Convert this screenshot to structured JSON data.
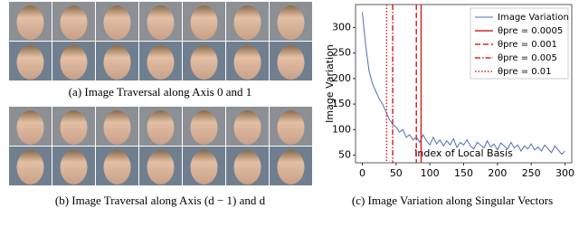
{
  "captions": {
    "a": "(a) Image Traversal along Axis 0 and 1",
    "b": "(b) Image Traversal along Axis (d − 1) and d",
    "c": "(c) Image Variation along Singular Vectors"
  },
  "chart_data": {
    "type": "line",
    "xlabel": "Index of Local Basis",
    "ylabel": "Image Variation",
    "xlim": [
      -10,
      310
    ],
    "ylim": [
      35,
      345
    ],
    "xticks": [
      0,
      50,
      100,
      150,
      200,
      250,
      300
    ],
    "yticks": [
      50,
      100,
      150,
      200,
      250,
      300
    ],
    "legend": "upper right",
    "x": [
      0,
      5,
      10,
      15,
      20,
      25,
      30,
      35,
      40,
      45,
      50,
      55,
      60,
      65,
      70,
      75,
      80,
      85,
      90,
      95,
      100,
      105,
      110,
      115,
      120,
      125,
      130,
      135,
      140,
      145,
      150,
      155,
      160,
      165,
      170,
      175,
      180,
      185,
      190,
      195,
      200,
      205,
      210,
      215,
      220,
      225,
      230,
      235,
      240,
      245,
      250,
      255,
      260,
      265,
      270,
      275,
      280,
      285,
      290,
      295,
      300
    ],
    "series": [
      {
        "name": "Image Variation",
        "color": "#4c72b0",
        "values": [
          330,
          265,
          215,
          190,
          175,
          160,
          150,
          135,
          120,
          110,
          105,
          95,
          100,
          85,
          90,
          80,
          85,
          75,
          90,
          78,
          70,
          85,
          72,
          80,
          68,
          78,
          70,
          82,
          65,
          75,
          70,
          80,
          68,
          62,
          75,
          70,
          64,
          78,
          66,
          72,
          60,
          74,
          68,
          62,
          75,
          64,
          70,
          58,
          68,
          62,
          72,
          60,
          66,
          58,
          70,
          62,
          55,
          68,
          60,
          52,
          58
        ]
      }
    ],
    "vlines": [
      {
        "name": "θpre = 0.0005",
        "x": 87,
        "style": "solid",
        "color": "#d62728"
      },
      {
        "name": "θpre = 0.001",
        "x": 80,
        "style": "dashed",
        "color": "#d62728"
      },
      {
        "name": "θpre = 0.005",
        "x": 45,
        "style": "dashdot",
        "color": "#d62728"
      },
      {
        "name": "θpre = 0.01",
        "x": 36,
        "style": "dotted",
        "color": "#d62728"
      }
    ]
  }
}
